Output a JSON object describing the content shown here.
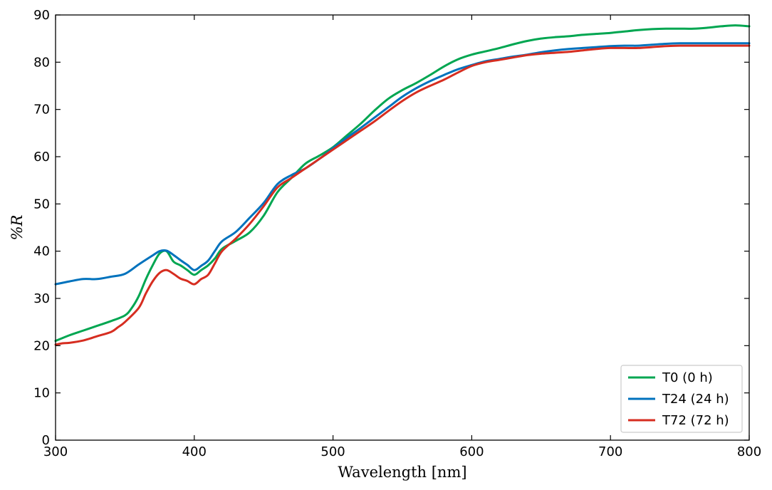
{
  "chart_data": {
    "type": "line",
    "xlabel": "Wavelength [nm]",
    "ylabel": "%R",
    "xlim": [
      300,
      800
    ],
    "ylim": [
      0,
      90
    ],
    "xticks": [
      300,
      400,
      500,
      600,
      700,
      800
    ],
    "yticks": [
      0,
      10,
      20,
      30,
      40,
      50,
      60,
      70,
      80,
      90
    ],
    "grid": false,
    "legend_position": "bottom-right",
    "series": [
      {
        "name": "T0 (0 h)",
        "color": "#00a651",
        "x": [
          300,
          310,
          320,
          330,
          340,
          350,
          355,
          360,
          365,
          370,
          375,
          380,
          385,
          390,
          395,
          400,
          405,
          410,
          415,
          420,
          430,
          440,
          450,
          460,
          470,
          480,
          490,
          500,
          510,
          520,
          530,
          540,
          550,
          560,
          570,
          580,
          590,
          600,
          610,
          620,
          630,
          640,
          650,
          660,
          670,
          680,
          690,
          700,
          710,
          720,
          730,
          740,
          750,
          760,
          770,
          780,
          790,
          800
        ],
        "y": [
          21,
          22.2,
          23.2,
          24.2,
          25.2,
          26.4,
          28,
          30.5,
          34,
          37,
          39.5,
          40,
          37.8,
          37,
          36,
          35,
          36,
          37,
          38.5,
          40.5,
          42.2,
          44,
          47.5,
          52.5,
          55.5,
          58.5,
          60.2,
          62,
          64.5,
          67,
          69.8,
          72.3,
          74.1,
          75.6,
          77.3,
          79.1,
          80.6,
          81.6,
          82.3,
          83,
          83.8,
          84.5,
          85,
          85.3,
          85.5,
          85.8,
          86,
          86.2,
          86.5,
          86.8,
          87,
          87.1,
          87.1,
          87.1,
          87.3,
          87.6,
          87.8,
          87.6
        ]
      },
      {
        "name": "T24 (24 h)",
        "color": "#0072bd",
        "x": [
          300,
          310,
          320,
          330,
          340,
          350,
          360,
          370,
          375,
          380,
          385,
          390,
          395,
          400,
          405,
          410,
          415,
          420,
          430,
          440,
          450,
          460,
          470,
          480,
          490,
          500,
          510,
          520,
          530,
          540,
          550,
          560,
          570,
          580,
          590,
          600,
          610,
          620,
          630,
          640,
          650,
          660,
          670,
          680,
          690,
          700,
          710,
          720,
          730,
          740,
          750,
          760,
          770,
          780,
          790,
          800
        ],
        "y": [
          33,
          33.6,
          34.1,
          34.1,
          34.6,
          35.2,
          37.2,
          39.1,
          40,
          40.1,
          39.2,
          38.1,
          37.1,
          36,
          36.9,
          38,
          40.1,
          42.1,
          44.1,
          47.1,
          50.2,
          54.2,
          56.1,
          57.5,
          59.5,
          61.8,
          64,
          66.1,
          68.3,
          70.5,
          72.7,
          74.5,
          76,
          77.3,
          78.5,
          79.4,
          80.2,
          80.7,
          81.2,
          81.6,
          82.1,
          82.5,
          82.8,
          83,
          83.2,
          83.4,
          83.5,
          83.5,
          83.7,
          83.9,
          84,
          84,
          84,
          84,
          84,
          84
        ]
      },
      {
        "name": "T72 (72 h)",
        "color": "#d62d20",
        "x": [
          300,
          305,
          310,
          320,
          330,
          340,
          345,
          350,
          360,
          365,
          370,
          375,
          380,
          385,
          390,
          395,
          400,
          405,
          410,
          415,
          420,
          430,
          440,
          450,
          460,
          470,
          480,
          490,
          500,
          510,
          520,
          530,
          540,
          550,
          560,
          570,
          580,
          590,
          600,
          610,
          620,
          630,
          640,
          650,
          660,
          670,
          680,
          690,
          700,
          710,
          720,
          730,
          740,
          750,
          760,
          770,
          780,
          790,
          800
        ],
        "y": [
          20.2,
          20.5,
          20.6,
          21.1,
          22,
          22.9,
          23.9,
          25,
          28,
          31,
          33.6,
          35.4,
          36,
          35.2,
          34.2,
          33.7,
          33,
          34.1,
          35,
          37.5,
          40,
          42.7,
          45.8,
          49.5,
          53.5,
          55.5,
          57.5,
          59.5,
          61.5,
          63.5,
          65.5,
          67.5,
          69.7,
          71.8,
          73.6,
          75,
          76.3,
          77.8,
          79.2,
          80,
          80.5,
          81,
          81.5,
          81.8,
          82,
          82.2,
          82.5,
          82.8,
          83,
          83,
          83,
          83.2,
          83.4,
          83.5,
          83.5,
          83.5,
          83.5,
          83.5,
          83.5
        ]
      }
    ]
  }
}
